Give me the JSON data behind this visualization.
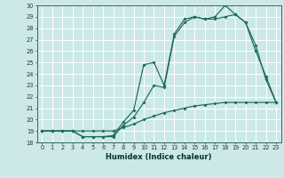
{
  "xlabel": "Humidex (Indice chaleur)",
  "bg_color": "#cce8e8",
  "grid_color": "#ffffff",
  "line_color": "#1a6b5a",
  "ylim": [
    18,
    30
  ],
  "xlim": [
    -0.5,
    23.5
  ],
  "yticks": [
    18,
    19,
    20,
    21,
    22,
    23,
    24,
    25,
    26,
    27,
    28,
    29,
    30
  ],
  "xticks": [
    0,
    1,
    2,
    3,
    4,
    5,
    6,
    7,
    8,
    9,
    10,
    11,
    12,
    13,
    14,
    15,
    16,
    17,
    18,
    19,
    20,
    21,
    22,
    23
  ],
  "line1_x": [
    0,
    1,
    2,
    3,
    4,
    5,
    6,
    7,
    8,
    9,
    10,
    11,
    12,
    13,
    14,
    15,
    16,
    17,
    18,
    19,
    20,
    21,
    22,
    23
  ],
  "line1_y": [
    19,
    19,
    19,
    19,
    18.5,
    18.5,
    18.5,
    18.5,
    19.5,
    20.2,
    21.5,
    23.0,
    22.8,
    27.3,
    28.5,
    29.0,
    28.8,
    29.0,
    30.0,
    29.2,
    28.5,
    26.5,
    23.5,
    21.5
  ],
  "line2_x": [
    0,
    1,
    2,
    3,
    4,
    5,
    6,
    7,
    8,
    9,
    10,
    11,
    12,
    13,
    14,
    15,
    16,
    17,
    18,
    19,
    20,
    21,
    22,
    23
  ],
  "line2_y": [
    19,
    19,
    19,
    19,
    18.5,
    18.5,
    18.5,
    18.6,
    19.8,
    20.8,
    24.8,
    25.0,
    23.0,
    27.5,
    28.8,
    29.0,
    28.8,
    28.8,
    29.0,
    29.2,
    28.5,
    26.0,
    23.8,
    21.5
  ],
  "line3_x": [
    0,
    1,
    2,
    3,
    4,
    5,
    6,
    7,
    8,
    9,
    10,
    11,
    12,
    13,
    14,
    15,
    16,
    17,
    18,
    19,
    20,
    21,
    22,
    23
  ],
  "line3_y": [
    19,
    19,
    19,
    19,
    19.0,
    19.0,
    19.0,
    19.0,
    19.3,
    19.6,
    20.0,
    20.3,
    20.6,
    20.8,
    21.0,
    21.2,
    21.3,
    21.4,
    21.5,
    21.5,
    21.5,
    21.5,
    21.5,
    21.5
  ]
}
